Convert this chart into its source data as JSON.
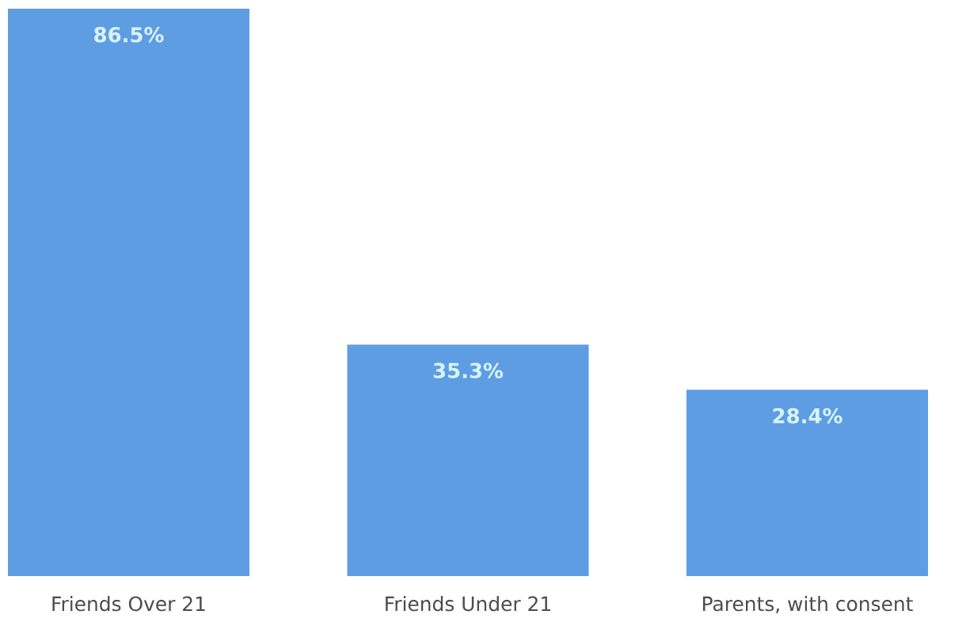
{
  "chart_data": {
    "type": "bar",
    "categories": [
      "Friends Over 21",
      "Friends Under 21",
      "Parents, with consent"
    ],
    "values": [
      86.5,
      35.3,
      28.4
    ],
    "value_labels": [
      "86.5%",
      "35.3%",
      "28.4%"
    ],
    "color": "#5e9de2"
  }
}
